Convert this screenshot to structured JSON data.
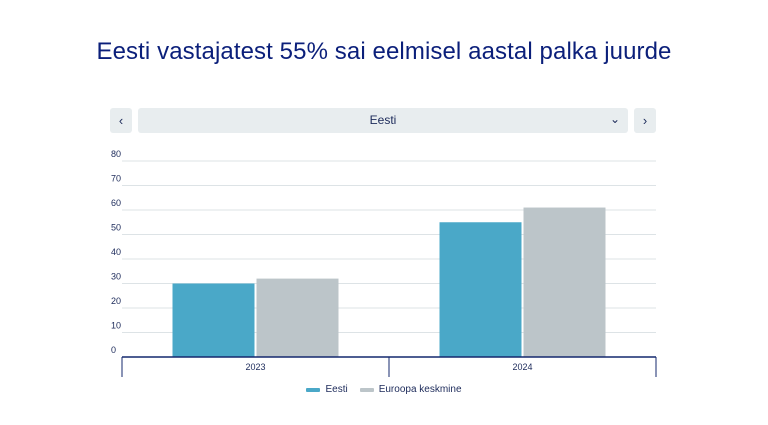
{
  "title": "Eesti vastajatest 55% sai eelmisel aastal palka juurde",
  "selector": {
    "value": "Eesti",
    "prev_icon": "chevron-left",
    "next_icon": "chevron-right",
    "dropdown_icon": "chevron-down"
  },
  "colors": {
    "title": "#0b1f7a",
    "axis": "#14286e",
    "grid": "#dde3e6",
    "series1": "#4aa8c8",
    "series2": "#bcc5c9"
  },
  "chart_data": {
    "type": "bar",
    "title": "Eesti vastajatest 55% sai eelmisel aastal palka juurde",
    "categories": [
      "2023",
      "2024"
    ],
    "series": [
      {
        "name": "Eesti",
        "values": [
          30,
          55
        ],
        "color": "#4aa8c8"
      },
      {
        "name": "Euroopa keskmine",
        "values": [
          32,
          61
        ],
        "color": "#bcc5c9"
      }
    ],
    "ylim": [
      0,
      80
    ],
    "yticks": [
      "0",
      "10",
      "20",
      "30",
      "40",
      "50",
      "60",
      "70",
      "80"
    ],
    "grid": true,
    "legend": "bottom-center",
    "xlabel": "",
    "ylabel": ""
  }
}
